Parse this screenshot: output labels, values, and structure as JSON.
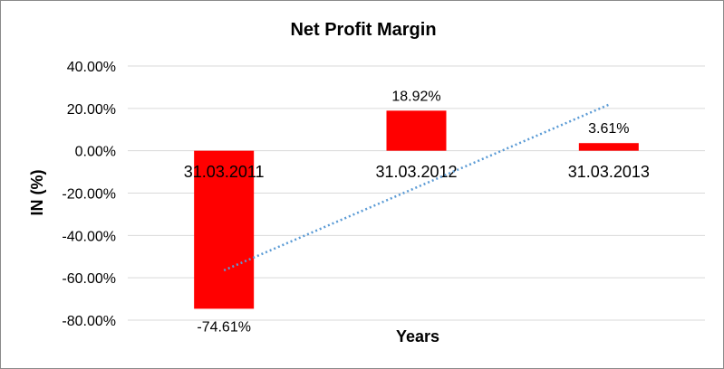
{
  "chart_data": {
    "type": "bar",
    "title": "Net Profit Margin",
    "xlabel": "Years",
    "ylabel": "IN (%)",
    "categories": [
      "31.03.2011",
      "31.03.2012",
      "31.03.2013"
    ],
    "values": [
      -74.61,
      18.92,
      3.61
    ],
    "data_labels": [
      "-74.61%",
      "18.92%",
      "3.61%"
    ],
    "yticks": [
      "40.00%",
      "20.00%",
      "0.00%",
      "-20.00%",
      "-40.00%",
      "-60.00%",
      "-80.00%"
    ],
    "ytick_values": [
      40,
      20,
      0,
      -20,
      -40,
      -60,
      -80
    ],
    "ylim": [
      -80,
      40
    ],
    "grid": true,
    "legend": "none",
    "bar_color": "#ff0000",
    "trendline": {
      "type": "linear",
      "style": "dotted",
      "color": "#5b9bd5"
    }
  }
}
